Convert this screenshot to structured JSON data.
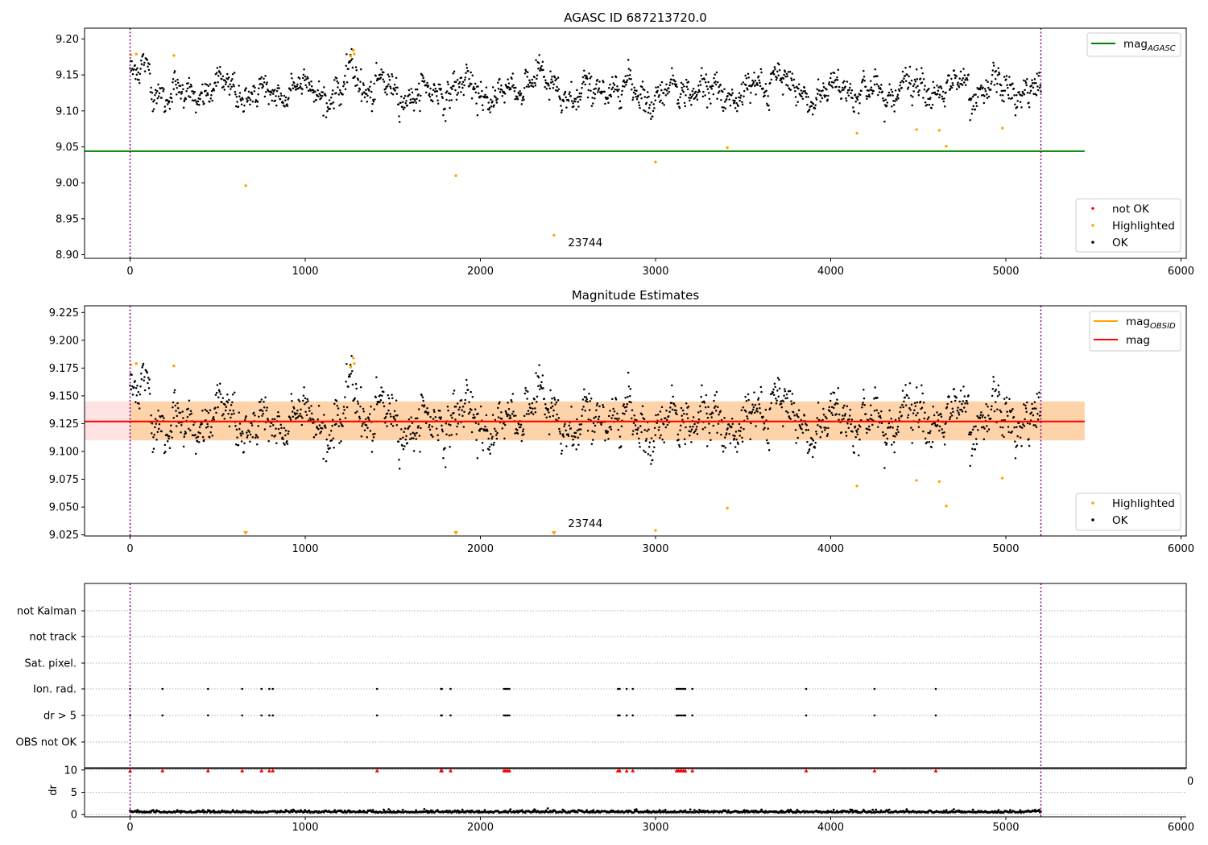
{
  "chart_data": [
    {
      "type": "scatter",
      "title": "AGASC ID 687213720.0",
      "xlim": [
        -260,
        6030
      ],
      "ylim": [
        8.895,
        9.215
      ],
      "x_ticks": [
        "0",
        "1000",
        "2000",
        "3000",
        "4000",
        "5000",
        "6000"
      ],
      "x_tick_values": [
        0,
        1000,
        2000,
        3000,
        4000,
        5000,
        6000
      ],
      "y_ticks": [
        "8.90",
        "8.95",
        "9.00",
        "9.05",
        "9.10",
        "9.15",
        "9.20"
      ],
      "y_tick_values": [
        8.9,
        8.95,
        9.0,
        9.05,
        9.1,
        9.15,
        9.2
      ],
      "grid": false,
      "series": [
        {
          "name": "OK",
          "color": "#000000",
          "marker": "dot",
          "x_range": [
            0,
            5200
          ],
          "typical_range": [
            9.09,
            9.17
          ]
        },
        {
          "name": "Highlighted",
          "color": "#ffa500",
          "marker": "dot",
          "points": [
            [
              5,
              9.178
            ],
            [
              35,
              9.179
            ],
            [
              250,
              9.177
            ],
            [
              1260,
              9.176
            ],
            [
              1275,
              9.184
            ],
            [
              1280,
              9.179
            ],
            [
              660,
              8.996
            ],
            [
              1860,
              9.01
            ],
            [
              2420,
              8.927
            ],
            [
              3000,
              9.029
            ],
            [
              3410,
              9.049
            ],
            [
              4150,
              9.069
            ],
            [
              4490,
              9.074
            ],
            [
              4620,
              9.073
            ],
            [
              4660,
              9.051
            ],
            [
              4980,
              9.076
            ]
          ]
        },
        {
          "name": "not OK",
          "color": "#ff0000",
          "marker": "dot",
          "points": []
        }
      ],
      "lines": [
        {
          "name": "mag",
          "subscript": "AGASC",
          "color": "#008000",
          "y": 9.044,
          "x_range": [
            -260,
            5450
          ]
        }
      ],
      "vlines": [
        0,
        5200
      ],
      "annotation": {
        "text": "23744",
        "x": 2500,
        "y": 8.912
      },
      "legend_lines_loc": "upper right",
      "legend_points_loc": "lower right"
    },
    {
      "type": "scatter",
      "title": "Magnitude Estimates",
      "xlim": [
        -260,
        6030
      ],
      "ylim": [
        9.024,
        9.231
      ],
      "x_ticks": [
        "0",
        "1000",
        "2000",
        "3000",
        "4000",
        "5000",
        "6000"
      ],
      "x_tick_values": [
        0,
        1000,
        2000,
        3000,
        4000,
        5000,
        6000
      ],
      "y_ticks": [
        "9.025",
        "9.050",
        "9.075",
        "9.100",
        "9.125",
        "9.150",
        "9.175",
        "9.200",
        "9.225"
      ],
      "y_tick_values": [
        9.025,
        9.05,
        9.075,
        9.1,
        9.125,
        9.15,
        9.175,
        9.2,
        9.225
      ],
      "grid": false,
      "series": [
        {
          "name": "OK",
          "color": "#000000",
          "marker": "dot",
          "x_range": [
            0,
            5200
          ],
          "typical_range": [
            9.09,
            9.17
          ]
        },
        {
          "name": "Highlighted",
          "color": "#ffa500",
          "marker": "dot",
          "points": [
            [
              5,
              9.178
            ],
            [
              35,
              9.179
            ],
            [
              250,
              9.177
            ],
            [
              1260,
              9.176
            ],
            [
              1275,
              9.184
            ],
            [
              1280,
              9.179
            ],
            [
              3410,
              9.049
            ],
            [
              4150,
              9.069
            ],
            [
              4490,
              9.074
            ],
            [
              4620,
              9.073
            ],
            [
              4660,
              9.051
            ],
            [
              4980,
              9.076
            ],
            [
              3000,
              9.029
            ]
          ]
        }
      ],
      "off_axis_markers": [
        660,
        1860,
        2420
      ],
      "lines": [
        {
          "name": "mag",
          "subscript": "OBSID",
          "color": "#ffa500",
          "y": 9.127,
          "x_range": [
            0,
            5200
          ]
        },
        {
          "name": "mag",
          "subscript": "",
          "color": "#ff0000",
          "y": 9.127,
          "x_range": [
            -260,
            5450
          ]
        }
      ],
      "bands": [
        {
          "color": "#ff8080",
          "opacity": 0.22,
          "y_range": [
            9.11,
            9.145
          ],
          "x_range": [
            -260,
            5450
          ]
        },
        {
          "color": "#ffa500",
          "opacity": 0.25,
          "y_range": [
            9.11,
            9.145
          ],
          "x_range": [
            0,
            5450
          ]
        }
      ],
      "vlines": [
        0,
        5200
      ],
      "annotation": {
        "text": "23744",
        "x": 2500,
        "y": 9.029
      },
      "legend_lines_loc": "upper right",
      "legend_points_loc": "lower right"
    },
    {
      "type": "scatter",
      "title": "",
      "xlim": [
        -260,
        6030
      ],
      "categories": [
        "OBS not OK",
        "dr > 5",
        "Ion. rad.",
        "Sat. pixel.",
        "not track",
        "not Kalman"
      ],
      "grid": "horizontal dotted",
      "flag_events": [
        0,
        185,
        445,
        640,
        750,
        795,
        815,
        1410,
        1775,
        1780,
        1830,
        2135,
        2145,
        2155,
        2165,
        2785,
        2795,
        2835,
        2870,
        3120,
        3130,
        3140,
        3150,
        3160,
        3170,
        3210,
        3860,
        4250,
        4600
      ],
      "flagged_rows": [
        "dr > 5",
        "Ion. rad."
      ],
      "vlines": [
        0,
        5200
      ]
    },
    {
      "type": "scatter",
      "title": "",
      "xlim": [
        -260,
        6030
      ],
      "ylim": [
        -0.5,
        10.5
      ],
      "ylabel": "dr",
      "y_ticks": [
        "0",
        "5",
        "10"
      ],
      "y_tick_values": [
        0,
        5,
        10
      ],
      "x_ticks": [
        "0",
        "1000",
        "2000",
        "3000",
        "4000",
        "5000",
        "6000"
      ],
      "x_tick_values": [
        0,
        1000,
        2000,
        3000,
        4000,
        5000,
        6000
      ],
      "grid": "horizontal dotted",
      "series": [
        {
          "name": "dr",
          "color": "#000000",
          "x_range": [
            0,
            5200
          ],
          "typical_range": [
            0.1,
            1.0
          ]
        },
        {
          "name": "dr > 5 (clipped)",
          "color": "#ff0000",
          "marker": "triangle",
          "y": 10
        }
      ],
      "vlines": [
        0,
        5200
      ],
      "overflow_label": "0"
    }
  ],
  "legends": {
    "panel1_lines": [
      {
        "label": "mag",
        "subscript": "AGASC",
        "color": "#008000"
      }
    ],
    "panel1_points": [
      {
        "label": "not OK",
        "color": "#ff0000"
      },
      {
        "label": "Highlighted",
        "color": "#ffa500"
      },
      {
        "label": "OK",
        "color": "#000000"
      }
    ],
    "panel2_lines": [
      {
        "label": "mag",
        "subscript": "OBSID",
        "color": "#ffa500"
      },
      {
        "label": "mag",
        "subscript": "",
        "color": "#ff0000"
      }
    ],
    "panel2_points": [
      {
        "label": "Highlighted",
        "color": "#ffa500"
      },
      {
        "label": "OK",
        "color": "#000000"
      }
    ]
  }
}
